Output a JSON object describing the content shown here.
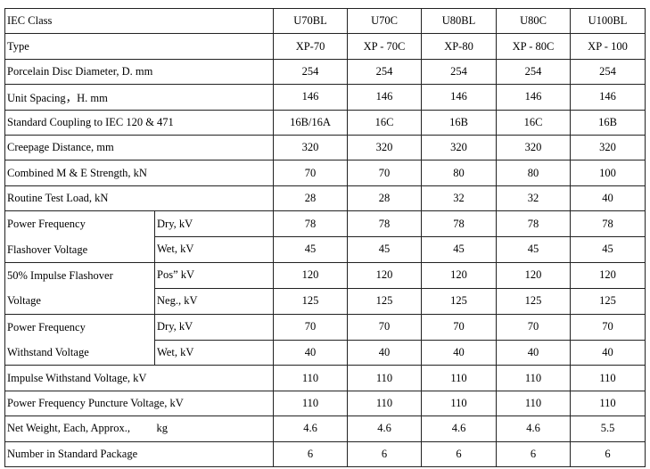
{
  "table": {
    "columns": [
      "IEC Class",
      "U70BL",
      "U70C",
      "U80BL",
      "U80C",
      "U100BL"
    ],
    "rows": [
      {
        "label": "Type",
        "values": [
          "XP-70",
          "XP - 70C",
          "XP-80",
          "XP - 80C",
          "XP - 100"
        ]
      },
      {
        "label": "Porcelain Disc Diameter, D. mm",
        "values": [
          254,
          254,
          254,
          254,
          254
        ]
      },
      {
        "label": "Unit Spacing，H. mm",
        "values": [
          146,
          146,
          146,
          146,
          146
        ]
      },
      {
        "label": "Standard Coupling to IEC 120 & 471",
        "values": [
          "16B/16A",
          "16C",
          "16B",
          "16C",
          "16B"
        ]
      },
      {
        "label": "Creepage Distance, mm",
        "values": [
          320,
          320,
          320,
          320,
          320
        ]
      },
      {
        "label": "Combined M & E Strength, kN",
        "values": [
          70,
          70,
          80,
          80,
          100
        ]
      },
      {
        "label": "Routine Test Load, kN",
        "values": [
          28,
          28,
          32,
          32,
          40
        ]
      },
      {
        "labels": [
          "Power Frequency",
          "Flashover Voltage"
        ],
        "subrows": [
          {
            "sub": "Dry, kV",
            "values": [
              78,
              78,
              78,
              78,
              78
            ]
          },
          {
            "sub": "Wet, kV",
            "values": [
              45,
              45,
              45,
              45,
              45
            ]
          }
        ]
      },
      {
        "labels": [
          "50% Impulse Flashover",
          "Voltage"
        ],
        "subrows": [
          {
            "sub": "Pos” kV",
            "values": [
              120,
              120,
              120,
              120,
              120
            ]
          },
          {
            "sub": "Neg., kV",
            "values": [
              125,
              125,
              125,
              125,
              125
            ]
          }
        ]
      },
      {
        "labels": [
          "Power Frequency",
          "Withstand Voltage"
        ],
        "subrows": [
          {
            "sub": "Dry, kV",
            "values": [
              70,
              70,
              70,
              70,
              70
            ]
          },
          {
            "sub": "Wet, kV",
            "values": [
              40,
              40,
              40,
              40,
              40
            ]
          }
        ]
      },
      {
        "label": "Impulse Withstand Voltage, kV",
        "values": [
          110,
          110,
          110,
          110,
          110
        ]
      },
      {
        "label": "Power Frequency Puncture Voltage, kV",
        "values": [
          110,
          110,
          110,
          110,
          110
        ]
      },
      {
        "label": "Net Weight, Each, Approx.,",
        "unit": "kg",
        "values": [
          4.6,
          4.6,
          4.6,
          4.6,
          5.5
        ]
      },
      {
        "label": "Number in Standard Package",
        "values": [
          6,
          6,
          6,
          6,
          6
        ]
      }
    ]
  }
}
